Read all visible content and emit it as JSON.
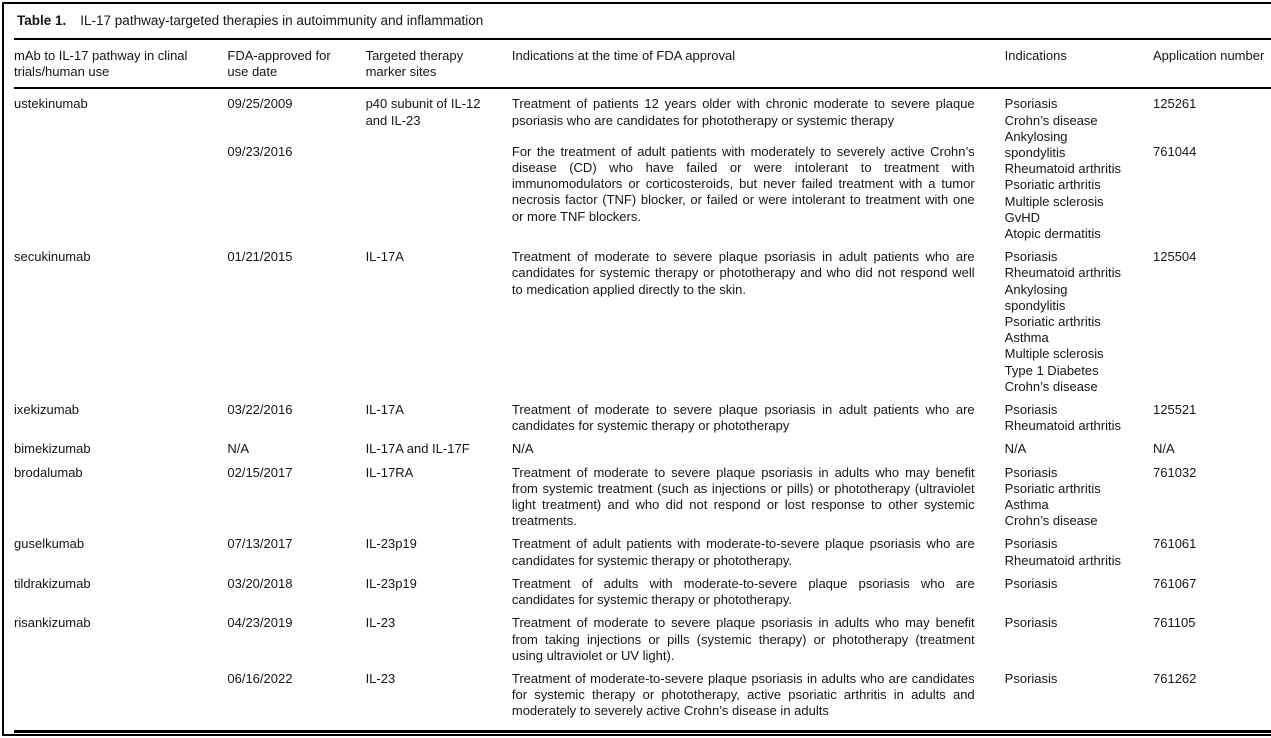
{
  "page": {
    "background_color": "#ffffff",
    "text_color": "#161616",
    "rule_color": "#000000"
  },
  "table": {
    "label": "Table 1.",
    "title": "IL-17 pathway-targeted therapies in autoimmunity and inflammation",
    "columns": [
      "mAb to IL-17 pathway in clinal trials/human use",
      "FDA-approved for use date",
      "Targeted therapy marker sites",
      "Indications at the time of FDA approval",
      "Indications",
      "Application number"
    ],
    "rows": [
      {
        "mab": "ustekinumab",
        "indications": [
          "Psoriasis",
          "Crohn’s disease",
          "Ankylosing spondylitis",
          "Rheumatoid arthritis",
          "Psoriatic arthritis",
          "Multiple sclerosis",
          "GvHD",
          "Atopic dermatitis"
        ],
        "entries": [
          {
            "date": "09/25/2009",
            "target": "p40 subunit of IL-12 and IL-23",
            "fda_indication": "Treatment of patients 12 years older with chronic moderate to severe plaque psoriasis who are candidates for phototherapy or systemic therapy",
            "application": "125261"
          },
          {
            "date": "09/23/2016",
            "target": "",
            "fda_indication": "For the treatment of adult patients with moderately to severely active Crohn’s disease (CD) who have failed or were intolerant to treatment with immunomodulators or corticosteroids, but never failed treatment with a tumor necrosis factor (TNF) blocker, or failed or were intolerant to treatment with one or more TNF blockers.",
            "application": "761044"
          }
        ]
      },
      {
        "mab": "secukinumab",
        "entries": [
          {
            "date": "01/21/2015",
            "target": "IL-17A",
            "fda_indication": "Treatment of moderate to severe plaque psoriasis in adult patients who are candidates for systemic therapy or phototherapy and who did not respond well to medication applied directly to the skin.",
            "indications": [
              "Psoriasis",
              "Rheumatoid arthritis",
              "Ankylosing spondylitis",
              "Psoriatic arthritis",
              "Asthma",
              "Multiple sclerosis",
              "Type 1 Diabetes",
              "Crohn’s disease"
            ],
            "application": "125504"
          }
        ]
      },
      {
        "mab": "ixekizumab",
        "entries": [
          {
            "date": "03/22/2016",
            "target": "IL-17A",
            "fda_indication": "Treatment of moderate to severe plaque psoriasis in adult patients who are candidates for systemic therapy or phototherapy",
            "indications": [
              "Psoriasis",
              "Rheumatoid arthritis"
            ],
            "application": "125521"
          }
        ]
      },
      {
        "mab": "bimekizumab",
        "entries": [
          {
            "date": "N/A",
            "target": "IL-17A and IL-17F",
            "fda_indication": "N/A",
            "indications": [
              "N/A"
            ],
            "application": "N/A"
          }
        ]
      },
      {
        "mab": "brodalumab",
        "entries": [
          {
            "date": "02/15/2017",
            "target": "IL-17RA",
            "fda_indication": "Treatment of moderate to severe plaque psoriasis in adults who may benefit from systemic treatment (such as injections or pills) or phototherapy (ultraviolet light treatment) and who did not respond or lost response to other systemic treatments.",
            "indications": [
              "Psoriasis",
              "Psoriatic arthritis",
              "Asthma",
              "Crohn’s disease"
            ],
            "application": "761032"
          }
        ]
      },
      {
        "mab": "guselkumab",
        "entries": [
          {
            "date": "07/13/2017",
            "target": "IL-23p19",
            "fda_indication": "Treatment of adult patients with moderate-to-severe plaque psoriasis who are candidates for systemic therapy or phototherapy.",
            "indications": [
              "Psoriasis",
              "Rheumatoid arthritis"
            ],
            "application": "761061"
          }
        ]
      },
      {
        "mab": "tildrakizumab",
        "entries": [
          {
            "date": "03/20/2018",
            "target": "IL-23p19",
            "fda_indication": "Treatment of adults with moderate-to-severe plaque psoriasis who are candidates for systemic therapy or phototherapy.",
            "indications": [
              "Psoriasis"
            ],
            "application": "761067"
          }
        ]
      },
      {
        "mab": "risankizumab",
        "entries": [
          {
            "date": "04/23/2019",
            "target": "IL-23",
            "fda_indication": "Treatment of moderate to severe plaque psoriasis in adults who may benefit from taking injections or pills (systemic therapy) or phototherapy (treatment using ultraviolet or UV light).",
            "indications": [
              "Psoriasis"
            ],
            "application": "761105"
          },
          {
            "date": "06/16/2022",
            "target": "IL-23",
            "fda_indication": "Treatment of moderate-to-severe plaque psoriasis in adults who are candidates for systemic therapy or phototherapy, active psoriatic arthritis in adults and moderately to severely active Crohn’s disease in adults",
            "indications": [
              "Psoriasis"
            ],
            "application": "761262"
          }
        ]
      }
    ]
  }
}
